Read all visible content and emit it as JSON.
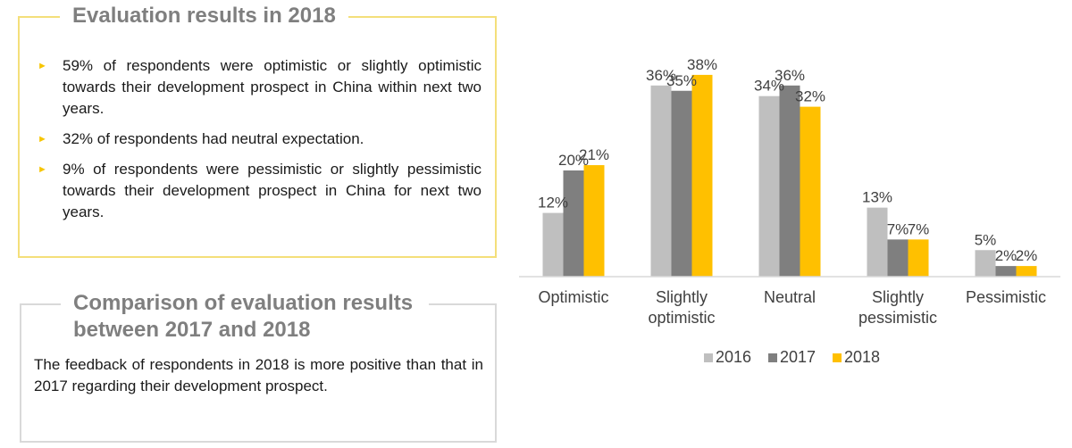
{
  "eval_box": {
    "title": "Evaluation results in 2018",
    "bullets": [
      "59% of respondents were optimistic or slightly optimistic towards their development prospect in China within next two years.",
      "32% of respondents had neutral expectation.",
      "9% of respondents were pessimistic or slightly pessimistic towards their development prospect in China for next two years."
    ],
    "bullet_color": "#f7c500",
    "border_color": "#f4df7a"
  },
  "compare_box": {
    "title_line1": "Comparison of evaluation results",
    "title_line2": "between 2017 and 2018",
    "text": "The feedback of respondents in 2018 is more positive than that in 2017 regarding their development prospect.",
    "border_color": "#d9d9d9"
  },
  "chart_data": {
    "type": "bar",
    "categories": [
      [
        "Optimistic"
      ],
      [
        "Slightly",
        "optimistic"
      ],
      [
        "Neutral"
      ],
      [
        "Slightly",
        "pessimistic"
      ],
      [
        "Pessimistic"
      ]
    ],
    "series": [
      {
        "name": "2016",
        "color": "#bfbfbf",
        "values": [
          12,
          36,
          34,
          13,
          5
        ]
      },
      {
        "name": "2017",
        "color": "#7f7f7f",
        "values": [
          20,
          35,
          36,
          7,
          2
        ]
      },
      {
        "name": "2018",
        "color": "#ffc000",
        "values": [
          21,
          38,
          32,
          7,
          2
        ]
      }
    ],
    "value_suffix": "%",
    "ylim": [
      0,
      40
    ],
    "grid": false,
    "legend_position": "bottom"
  }
}
